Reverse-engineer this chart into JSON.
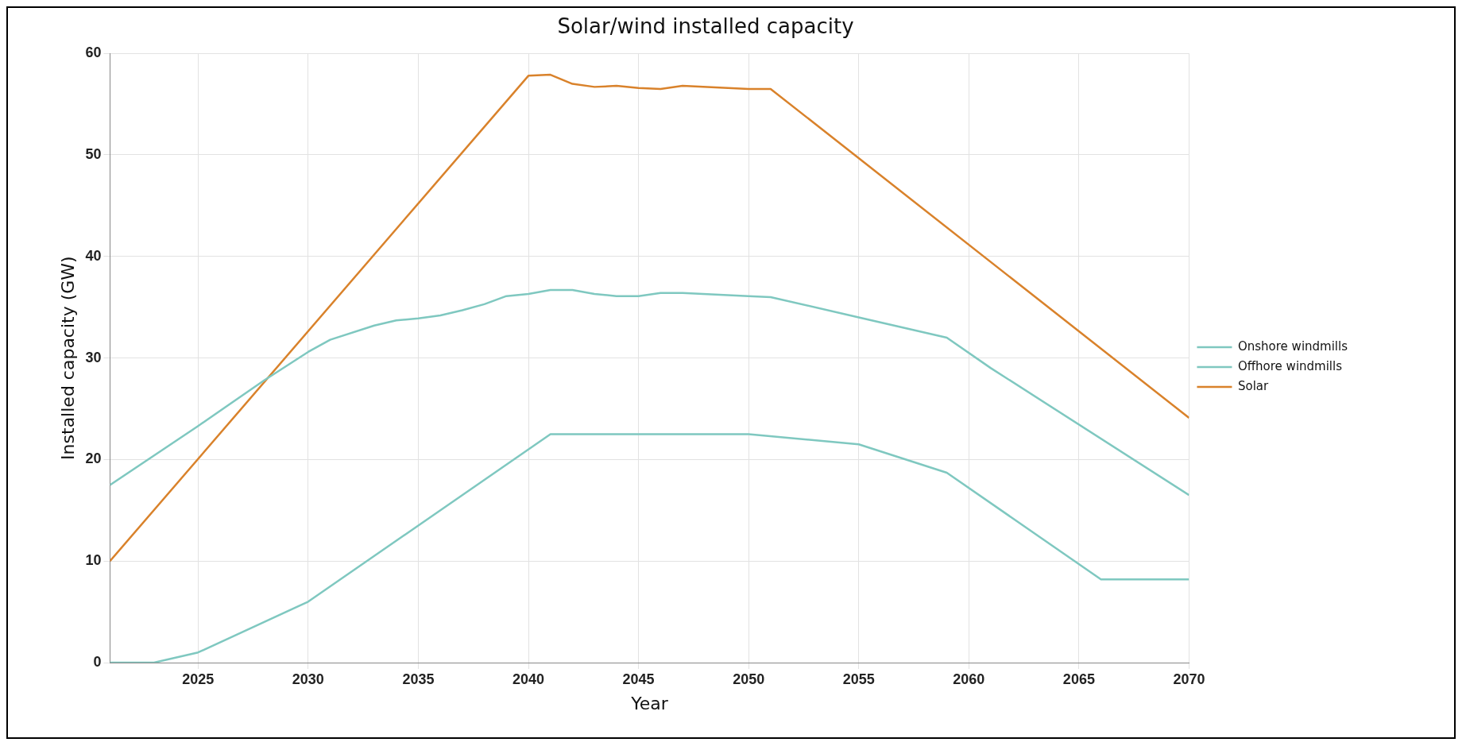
{
  "chart_data": {
    "type": "line",
    "title": "Solar/wind installed capacity",
    "xlabel": "Year",
    "ylabel": "Installed capacity (GW)",
    "xlim": [
      2021,
      2070
    ],
    "xticks": [
      2025,
      2030,
      2035,
      2040,
      2045,
      2050,
      2055,
      2060,
      2065,
      2070
    ],
    "ylim": [
      0,
      60
    ],
    "yticks": [
      0,
      10,
      20,
      30,
      40,
      50,
      60
    ],
    "grid": true,
    "legend": "right",
    "marker": "none",
    "line_style": "solid",
    "series": [
      {
        "name": "Onshore windmills",
        "color": "#7fc8c0",
        "x": [
          2021,
          2025,
          2028,
          2030,
          2031,
          2033,
          2034,
          2035,
          2036,
          2037,
          2038,
          2039,
          2040,
          2041,
          2042,
          2043,
          2044,
          2045,
          2046,
          2047,
          2050,
          2051,
          2055,
          2059,
          2061,
          2070
        ],
        "values": [
          17.5,
          23.3,
          27.8,
          30.6,
          31.8,
          33.2,
          33.7,
          33.9,
          34.2,
          34.7,
          35.3,
          36.1,
          36.3,
          36.7,
          36.7,
          36.3,
          36.1,
          36.1,
          36.4,
          36.4,
          36.1,
          36.0,
          34.0,
          32.0,
          29.0,
          16.5
        ]
      },
      {
        "name": "Offhore windmills",
        "color": "#7fc8c0",
        "x": [
          2021,
          2023,
          2025,
          2030,
          2041,
          2050,
          2055,
          2059,
          2066,
          2070
        ],
        "values": [
          0,
          0,
          1,
          6,
          22.5,
          22.5,
          21.5,
          18.7,
          8.2,
          8.2
        ]
      },
      {
        "name": "Solar",
        "color": "#d9822b",
        "x": [
          2021,
          2040,
          2041,
          2042,
          2043,
          2044,
          2045,
          2046,
          2047,
          2050,
          2051,
          2070
        ],
        "values": [
          10,
          57.8,
          57.9,
          57.0,
          56.7,
          56.8,
          56.6,
          56.5,
          56.8,
          56.5,
          56.5,
          24.1
        ]
      }
    ]
  }
}
